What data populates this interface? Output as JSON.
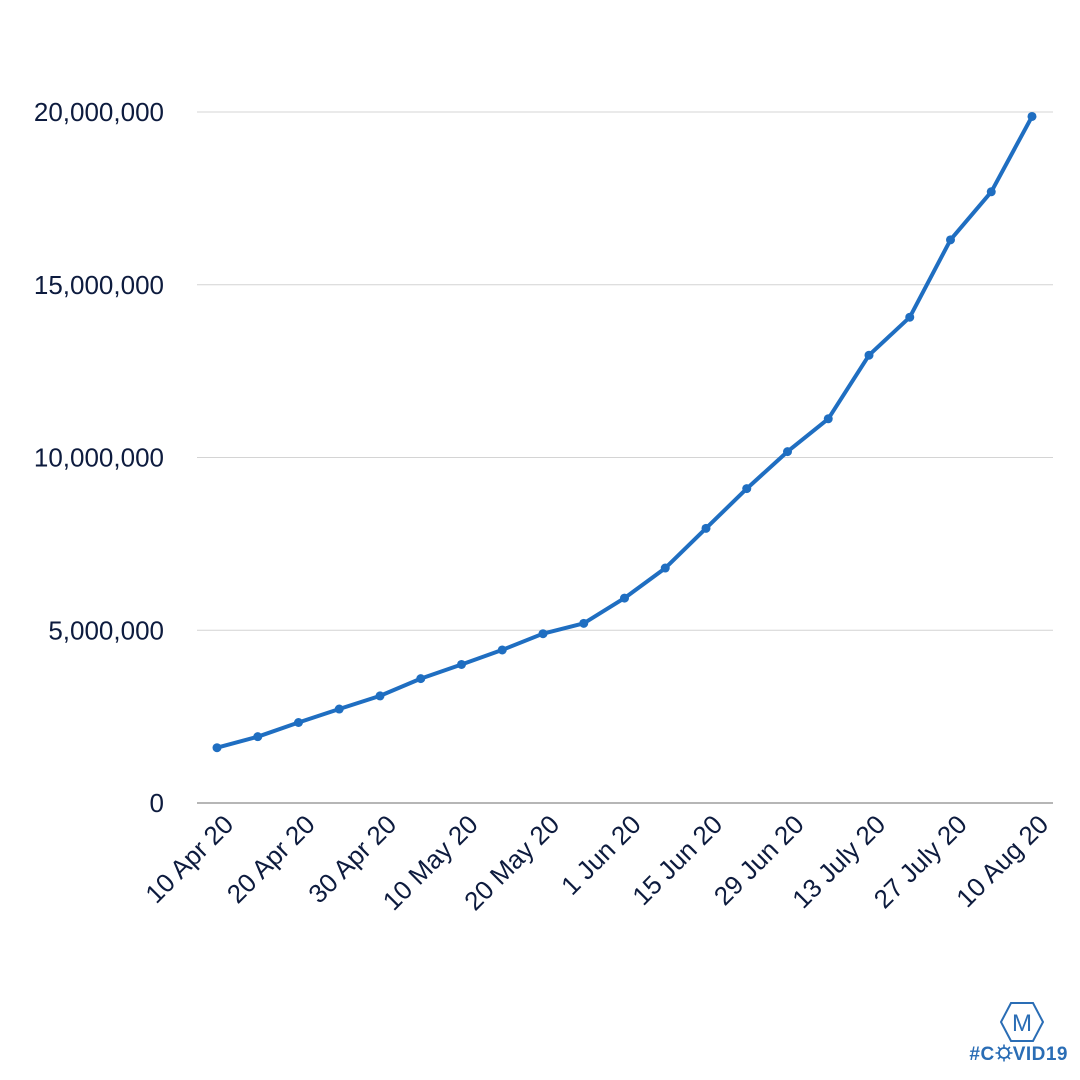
{
  "chart_data": {
    "type": "line",
    "title": "",
    "xlabel": "",
    "ylabel": "",
    "ylim": [
      0,
      20000000
    ],
    "yticks": [
      0,
      5000000,
      10000000,
      15000000,
      20000000
    ],
    "ytick_labels": [
      "0",
      "5,000,000",
      "10,000,000",
      "15,000,000",
      "20,000,000"
    ],
    "grid": "horizontal",
    "line_color": "#1f6ec1",
    "x": [
      "10 Apr 20",
      "15 Apr 20",
      "20 Apr 20",
      "25 Apr 20",
      "30 Apr 20",
      "5 May 20",
      "10 May 20",
      "15 May 20",
      "20 May 20",
      "25 May 20",
      "1 Jun 20",
      "8 Jun 20",
      "15 Jun 20",
      "22 Jun 20",
      "29 Jun 20",
      "6 July 20",
      "13 July 20",
      "20 July 20",
      "27 July 20",
      "3 Aug 20",
      "10 Aug 20"
    ],
    "x_tick_labels": [
      "10 Apr 20",
      "20 Apr 20",
      "30 Apr 20",
      "10 May 20",
      "20 May 20",
      "1 Jun 20",
      "15 Jun 20",
      "29 Jun 20",
      "13 July 20",
      "27 July 20",
      "10 Aug 20"
    ],
    "series": [
      {
        "values": [
          1600000,
          1920000,
          2330000,
          2720000,
          3100000,
          3600000,
          4010000,
          4430000,
          4900000,
          5200000,
          5930000,
          6800000,
          7950000,
          9100000,
          10170000,
          11120000,
          12960000,
          14060000,
          16300000,
          17690000,
          19870000
        ]
      }
    ]
  },
  "branding": {
    "logo_letter": "M",
    "hashtag_prefix": "#C",
    "hashtag_suffix": "VID19",
    "color": "#2a6db5"
  }
}
